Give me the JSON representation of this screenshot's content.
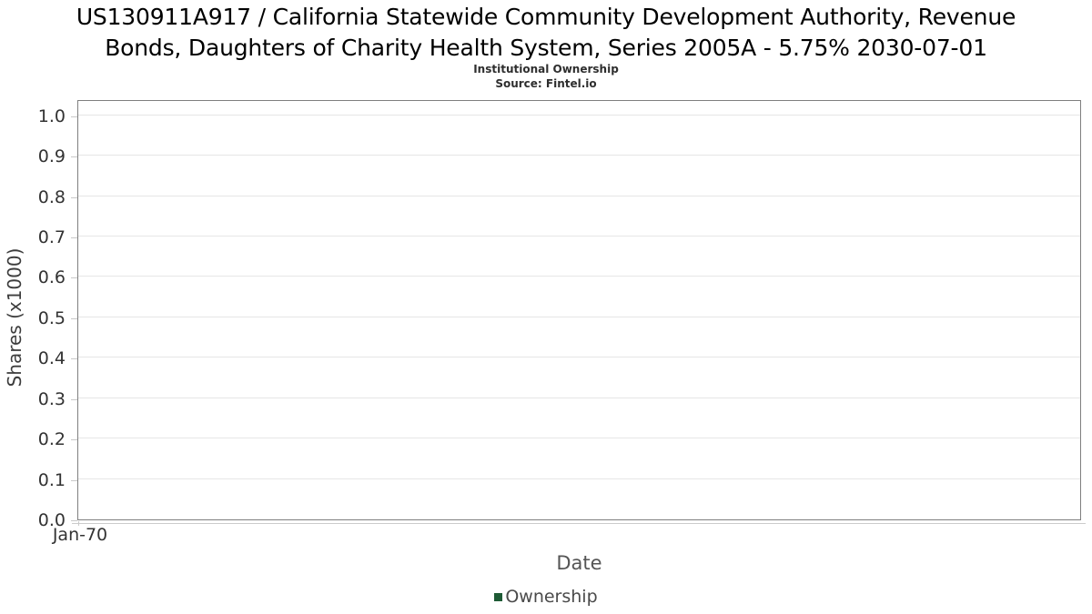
{
  "chart": {
    "title_lines": [
      "US130911A917 / California Statewide Community Development Authority, Revenue",
      "Bonds, Daughters of Charity Health System, Series 2005A - 5.75% 2030-07-01"
    ]
  },
  "chart_data": {
    "type": "line",
    "title": "US130911A917 / California Statewide Community Development Authority, Revenue Bonds, Daughters of Charity Health System, Series 2005A - 5.75% 2030-07-01",
    "subtitle": "Institutional Ownership",
    "source": "Source: Fintel.io",
    "xlabel": "Date",
    "ylabel": "Shares (x1000)",
    "x_ticks": [
      "Jan-70"
    ],
    "y_tick_labels": [
      "0.0",
      "0.1",
      "0.2",
      "0.3",
      "0.4",
      "0.5",
      "0.6",
      "0.7",
      "0.8",
      "0.9",
      "1.0"
    ],
    "y_tick_values": [
      0.0,
      0.1,
      0.2,
      0.3,
      0.4,
      0.5,
      0.6,
      0.7,
      0.8,
      0.9,
      1.0
    ],
    "ylim": [
      0.0,
      1.04
    ],
    "grid": "horizontal",
    "legend_position": "bottom",
    "series": [
      {
        "name": "Ownership",
        "color": "#1e5b35",
        "x": [],
        "values": []
      }
    ],
    "colors": {
      "title": "#000000",
      "axis_border": "#7f7f7f",
      "gridline": "#e6e6e6",
      "tick_text": "#333333",
      "legend_marker": "#1e5b35"
    }
  }
}
